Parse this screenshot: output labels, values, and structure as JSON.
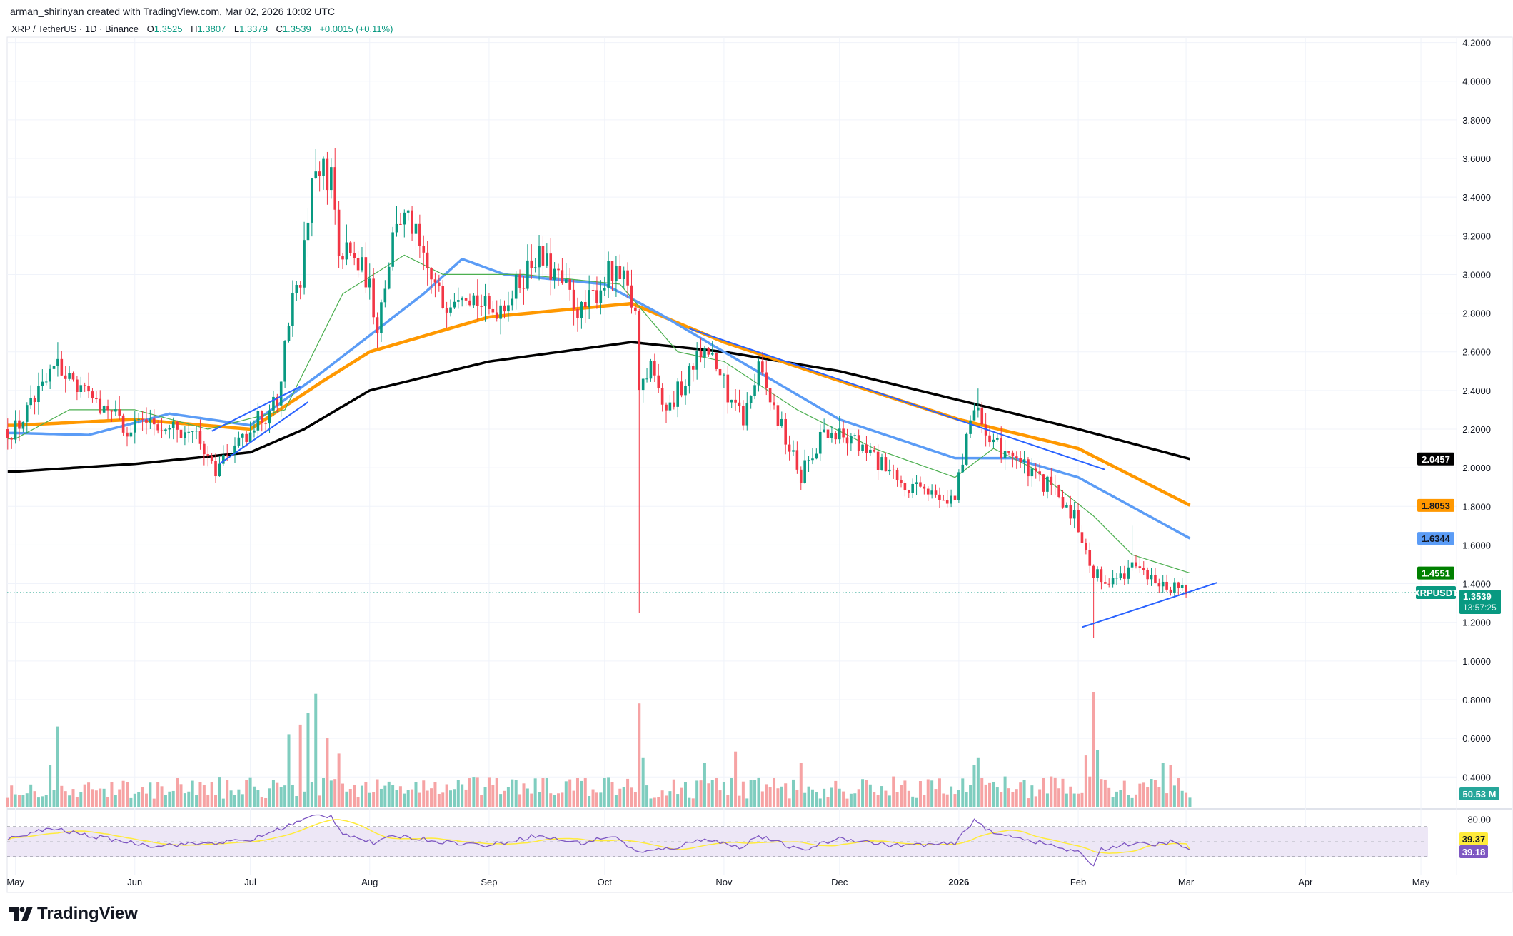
{
  "attribution": "arman_shirinyan created with TradingView.com, Mar 02, 2026 10:02 UTC",
  "legend": {
    "symbol": "XRP / TetherUS · 1D · Binance",
    "open_label": "O",
    "open": "1.3525",
    "high_label": "H",
    "high": "1.3807",
    "low_label": "L",
    "low": "1.3379",
    "close_label": "C",
    "close": "1.3539",
    "change": "+0.0015 (+0.11%)"
  },
  "logo_text": "TradingView",
  "colors": {
    "up": "#089981",
    "down": "#f23645",
    "vol_up": "#7fcdbf",
    "vol_down": "#f6a3a4",
    "sma_black": "#000000",
    "ma_orange": "#ff9800",
    "ma_blue": "#5b9cf6",
    "ma_green": "#4caf50",
    "trendline": "#2962ff",
    "rsi": "#7e57c2",
    "rsi_ma": "#ffeb3b",
    "rsi_band": "#ede7f6"
  },
  "chart_data": {
    "type": "candlestick",
    "symbol": "XRPUSDT",
    "price_axis": {
      "ylim": [
        0.35,
        4.3
      ],
      "ticks": [
        "4.2000",
        "4.0000",
        "3.8000",
        "3.6000",
        "3.4000",
        "3.2000",
        "3.0000",
        "2.8000",
        "2.6000",
        "2.4000",
        "2.2000",
        "2.0000",
        "1.8000",
        "1.6000",
        "1.4000",
        "1.2000",
        "1.0000",
        "0.8000",
        "0.6000",
        "0.4000"
      ]
    },
    "time_axis": {
      "range": [
        "2025-04-29",
        "2026-05-10"
      ],
      "ticks": [
        {
          "date": "2025-05-01",
          "label": "May"
        },
        {
          "date": "2025-06-01",
          "label": "Jun"
        },
        {
          "date": "2025-07-01",
          "label": "Jul"
        },
        {
          "date": "2025-08-01",
          "label": "Aug"
        },
        {
          "date": "2025-09-01",
          "label": "Sep"
        },
        {
          "date": "2025-10-01",
          "label": "Oct"
        },
        {
          "date": "2025-11-01",
          "label": "Nov"
        },
        {
          "date": "2025-12-01",
          "label": "Dec"
        },
        {
          "date": "2026-01-01",
          "label": "2026"
        },
        {
          "date": "2026-02-01",
          "label": "Feb"
        },
        {
          "date": "2026-03-01",
          "label": "Mar"
        },
        {
          "date": "2026-04-01",
          "label": "Apr"
        },
        {
          "date": "2026-05-01",
          "label": "May"
        }
      ]
    },
    "close_keypoints": [
      [
        "2025-05-01",
        2.2
      ],
      [
        "2025-05-10",
        2.45
      ],
      [
        "2025-05-12",
        2.55
      ],
      [
        "2025-05-20",
        2.35
      ],
      [
        "2025-05-31",
        2.2
      ],
      [
        "2025-06-10",
        2.25
      ],
      [
        "2025-06-17",
        2.15
      ],
      [
        "2025-06-22",
        2.0
      ],
      [
        "2025-07-01",
        2.2
      ],
      [
        "2025-07-08",
        2.35
      ],
      [
        "2025-07-11",
        2.8
      ],
      [
        "2025-07-14",
        3.0
      ],
      [
        "2025-07-18",
        3.55
      ],
      [
        "2025-07-22",
        3.5
      ],
      [
        "2025-07-24",
        3.15
      ],
      [
        "2025-07-31",
        3.0
      ],
      [
        "2025-08-03",
        2.75
      ],
      [
        "2025-08-08",
        3.3
      ],
      [
        "2025-08-12",
        3.25
      ],
      [
        "2025-08-15",
        3.05
      ],
      [
        "2025-08-20",
        2.85
      ],
      [
        "2025-08-25",
        2.95
      ],
      [
        "2025-09-01",
        2.8
      ],
      [
        "2025-09-07",
        2.9
      ],
      [
        "2025-09-13",
        3.1
      ],
      [
        "2025-09-18",
        3.0
      ],
      [
        "2025-09-25",
        2.8
      ],
      [
        "2025-10-02",
        3.0
      ],
      [
        "2025-10-06",
        2.95
      ],
      [
        "2025-10-09",
        2.8
      ],
      [
        "2025-10-10",
        2.4
      ],
      [
        "2025-10-13",
        2.55
      ],
      [
        "2025-10-17",
        2.3
      ],
      [
        "2025-10-22",
        2.45
      ],
      [
        "2025-10-27",
        2.65
      ],
      [
        "2025-11-03",
        2.35
      ],
      [
        "2025-11-06",
        2.25
      ],
      [
        "2025-11-10",
        2.5
      ],
      [
        "2025-11-14",
        2.3
      ],
      [
        "2025-11-21",
        1.95
      ],
      [
        "2025-11-27",
        2.2
      ],
      [
        "2025-12-03",
        2.15
      ],
      [
        "2025-12-10",
        2.05
      ],
      [
        "2025-12-17",
        1.9
      ],
      [
        "2025-12-24",
        1.87
      ],
      [
        "2025-12-31",
        1.85
      ],
      [
        "2026-01-05",
        2.35
      ],
      [
        "2026-01-09",
        2.1
      ],
      [
        "2026-01-14",
        2.1
      ],
      [
        "2026-01-20",
        1.95
      ],
      [
        "2026-01-25",
        1.9
      ],
      [
        "2026-01-31",
        1.75
      ],
      [
        "2026-02-03",
        1.6
      ],
      [
        "2026-02-05",
        1.4
      ],
      [
        "2026-02-06",
        1.45
      ],
      [
        "2026-02-10",
        1.4
      ],
      [
        "2026-02-15",
        1.5
      ],
      [
        "2026-02-20",
        1.42
      ],
      [
        "2026-02-25",
        1.38
      ],
      [
        "2026-03-02",
        1.3539
      ]
    ],
    "wick_extremes": [
      {
        "date": "2025-05-12",
        "high": 2.65
      },
      {
        "date": "2025-06-22",
        "low": 1.92
      },
      {
        "date": "2025-07-18",
        "high": 3.65
      },
      {
        "date": "2025-10-10",
        "low": 1.25
      },
      {
        "date": "2026-01-06",
        "high": 2.41
      },
      {
        "date": "2026-02-05",
        "low": 1.12
      },
      {
        "date": "2026-02-15",
        "high": 1.7
      }
    ],
    "moving_averages": [
      {
        "color_key": "sma_black",
        "value": "2.0457",
        "points": [
          [
            "2025-05-01",
            1.98
          ],
          [
            "2025-06-01",
            2.02
          ],
          [
            "2025-07-01",
            2.08
          ],
          [
            "2025-07-15",
            2.2
          ],
          [
            "2025-08-01",
            2.4
          ],
          [
            "2025-09-01",
            2.55
          ],
          [
            "2025-10-08",
            2.65
          ],
          [
            "2025-11-01",
            2.6
          ],
          [
            "2025-12-01",
            2.5
          ],
          [
            "2026-01-01",
            2.35
          ],
          [
            "2026-02-01",
            2.2
          ],
          [
            "2026-03-02",
            2.0457
          ]
        ]
      },
      {
        "color_key": "ma_orange",
        "value": "1.8053",
        "points": [
          [
            "2025-05-01",
            2.22
          ],
          [
            "2025-06-01",
            2.25
          ],
          [
            "2025-07-01",
            2.2
          ],
          [
            "2025-07-20",
            2.45
          ],
          [
            "2025-08-01",
            2.6
          ],
          [
            "2025-09-01",
            2.78
          ],
          [
            "2025-10-08",
            2.85
          ],
          [
            "2025-11-01",
            2.65
          ],
          [
            "2025-12-01",
            2.45
          ],
          [
            "2026-01-01",
            2.25
          ],
          [
            "2026-02-01",
            2.1
          ],
          [
            "2026-03-02",
            1.8053
          ]
        ]
      },
      {
        "color_key": "ma_blue",
        "value": "1.6344",
        "points": [
          [
            "2025-05-01",
            2.18
          ],
          [
            "2025-05-20",
            2.17
          ],
          [
            "2025-06-10",
            2.28
          ],
          [
            "2025-07-01",
            2.22
          ],
          [
            "2025-07-20",
            2.5
          ],
          [
            "2025-08-15",
            2.9
          ],
          [
            "2025-08-25",
            3.08
          ],
          [
            "2025-09-05",
            3.0
          ],
          [
            "2025-10-01",
            2.95
          ],
          [
            "2025-10-15",
            2.8
          ],
          [
            "2025-11-01",
            2.6
          ],
          [
            "2025-12-01",
            2.25
          ],
          [
            "2025-12-31",
            2.05
          ],
          [
            "2026-01-15",
            2.05
          ],
          [
            "2026-02-01",
            1.95
          ],
          [
            "2026-03-02",
            1.6344
          ]
        ]
      },
      {
        "color_key": "ma_green",
        "value": "1.4551",
        "points": [
          [
            "2025-05-01",
            2.15
          ],
          [
            "2025-05-15",
            2.3
          ],
          [
            "2025-06-01",
            2.3
          ],
          [
            "2025-06-20",
            2.2
          ],
          [
            "2025-07-10",
            2.3
          ],
          [
            "2025-07-25",
            2.9
          ],
          [
            "2025-08-10",
            3.1
          ],
          [
            "2025-08-20",
            3.0
          ],
          [
            "2025-09-10",
            3.0
          ],
          [
            "2025-10-05",
            2.95
          ],
          [
            "2025-10-20",
            2.6
          ],
          [
            "2025-11-01",
            2.55
          ],
          [
            "2025-11-20",
            2.3
          ],
          [
            "2025-12-10",
            2.1
          ],
          [
            "2025-12-31",
            1.95
          ],
          [
            "2026-01-10",
            2.1
          ],
          [
            "2026-01-20",
            2.0
          ],
          [
            "2026-02-05",
            1.75
          ],
          [
            "2026-02-15",
            1.55
          ],
          [
            "2026-03-02",
            1.4551
          ]
        ]
      }
    ],
    "trendlines": [
      [
        [
          "2025-06-21",
          2.19
        ],
        [
          "2025-07-14",
          2.42
        ]
      ],
      [
        [
          "2025-06-23",
          2.02
        ],
        [
          "2025-07-16",
          2.34
        ]
      ],
      [
        [
          "2025-10-23",
          2.72
        ],
        [
          "2026-02-08",
          1.99
        ]
      ],
      [
        [
          "2026-02-02",
          1.175
        ],
        [
          "2026-03-09",
          1.405
        ]
      ]
    ],
    "last_price": {
      "symbol_label": "XRPUSDT",
      "value": "1.3539",
      "countdown": "13:57:25"
    },
    "volume": {
      "unit": "M",
      "last": "50.53 M",
      "typical": 130,
      "spikes": [
        [
          "2025-05-10",
          220
        ],
        [
          "2025-05-12",
          420
        ],
        [
          "2025-07-11",
          380
        ],
        [
          "2025-07-14",
          430
        ],
        [
          "2025-07-16",
          490
        ],
        [
          "2025-07-18",
          590
        ],
        [
          "2025-07-21",
          360
        ],
        [
          "2025-07-24",
          280
        ],
        [
          "2025-10-10",
          540
        ],
        [
          "2025-10-11",
          260
        ],
        [
          "2025-10-27",
          230
        ],
        [
          "2025-11-04",
          290
        ],
        [
          "2025-11-21",
          230
        ],
        [
          "2026-01-05",
          220
        ],
        [
          "2026-01-06",
          260
        ],
        [
          "2026-02-03",
          270
        ],
        [
          "2026-02-05",
          600
        ],
        [
          "2026-02-06",
          300
        ],
        [
          "2026-02-23",
          230
        ],
        [
          "2026-02-25",
          220
        ],
        [
          "2026-03-02",
          50.53
        ]
      ]
    },
    "rsi": {
      "levels": {
        "upper": 70,
        "middle": 50,
        "lower": 30
      },
      "tick": "80.00",
      "rsi_value": "39.18",
      "ma_value": "39.37",
      "points": [
        [
          "2025-05-01",
          55
        ],
        [
          "2025-05-10",
          68
        ],
        [
          "2025-05-20",
          58
        ],
        [
          "2025-06-05",
          45
        ],
        [
          "2025-06-20",
          48
        ],
        [
          "2025-07-01",
          52
        ],
        [
          "2025-07-10",
          70
        ],
        [
          "2025-07-18",
          85
        ],
        [
          "2025-07-22",
          84
        ],
        [
          "2025-07-25",
          62
        ],
        [
          "2025-08-02",
          48
        ],
        [
          "2025-08-08",
          58
        ],
        [
          "2025-08-20",
          50
        ],
        [
          "2025-09-01",
          45
        ],
        [
          "2025-09-13",
          58
        ],
        [
          "2025-09-25",
          48
        ],
        [
          "2025-10-03",
          58
        ],
        [
          "2025-10-10",
          35
        ],
        [
          "2025-10-20",
          43
        ],
        [
          "2025-10-27",
          55
        ],
        [
          "2025-11-05",
          42
        ],
        [
          "2025-11-10",
          58
        ],
        [
          "2025-11-21",
          38
        ],
        [
          "2025-12-01",
          55
        ],
        [
          "2025-12-15",
          45
        ],
        [
          "2025-12-31",
          47
        ],
        [
          "2026-01-05",
          80
        ],
        [
          "2026-01-10",
          60
        ],
        [
          "2026-01-15",
          58
        ],
        [
          "2026-01-25",
          45
        ],
        [
          "2026-02-01",
          35
        ],
        [
          "2026-02-05",
          20
        ],
        [
          "2026-02-07",
          40
        ],
        [
          "2026-02-15",
          48
        ],
        [
          "2026-02-20",
          45
        ],
        [
          "2026-02-25",
          50
        ],
        [
          "2026-03-02",
          39.18
        ]
      ]
    }
  }
}
